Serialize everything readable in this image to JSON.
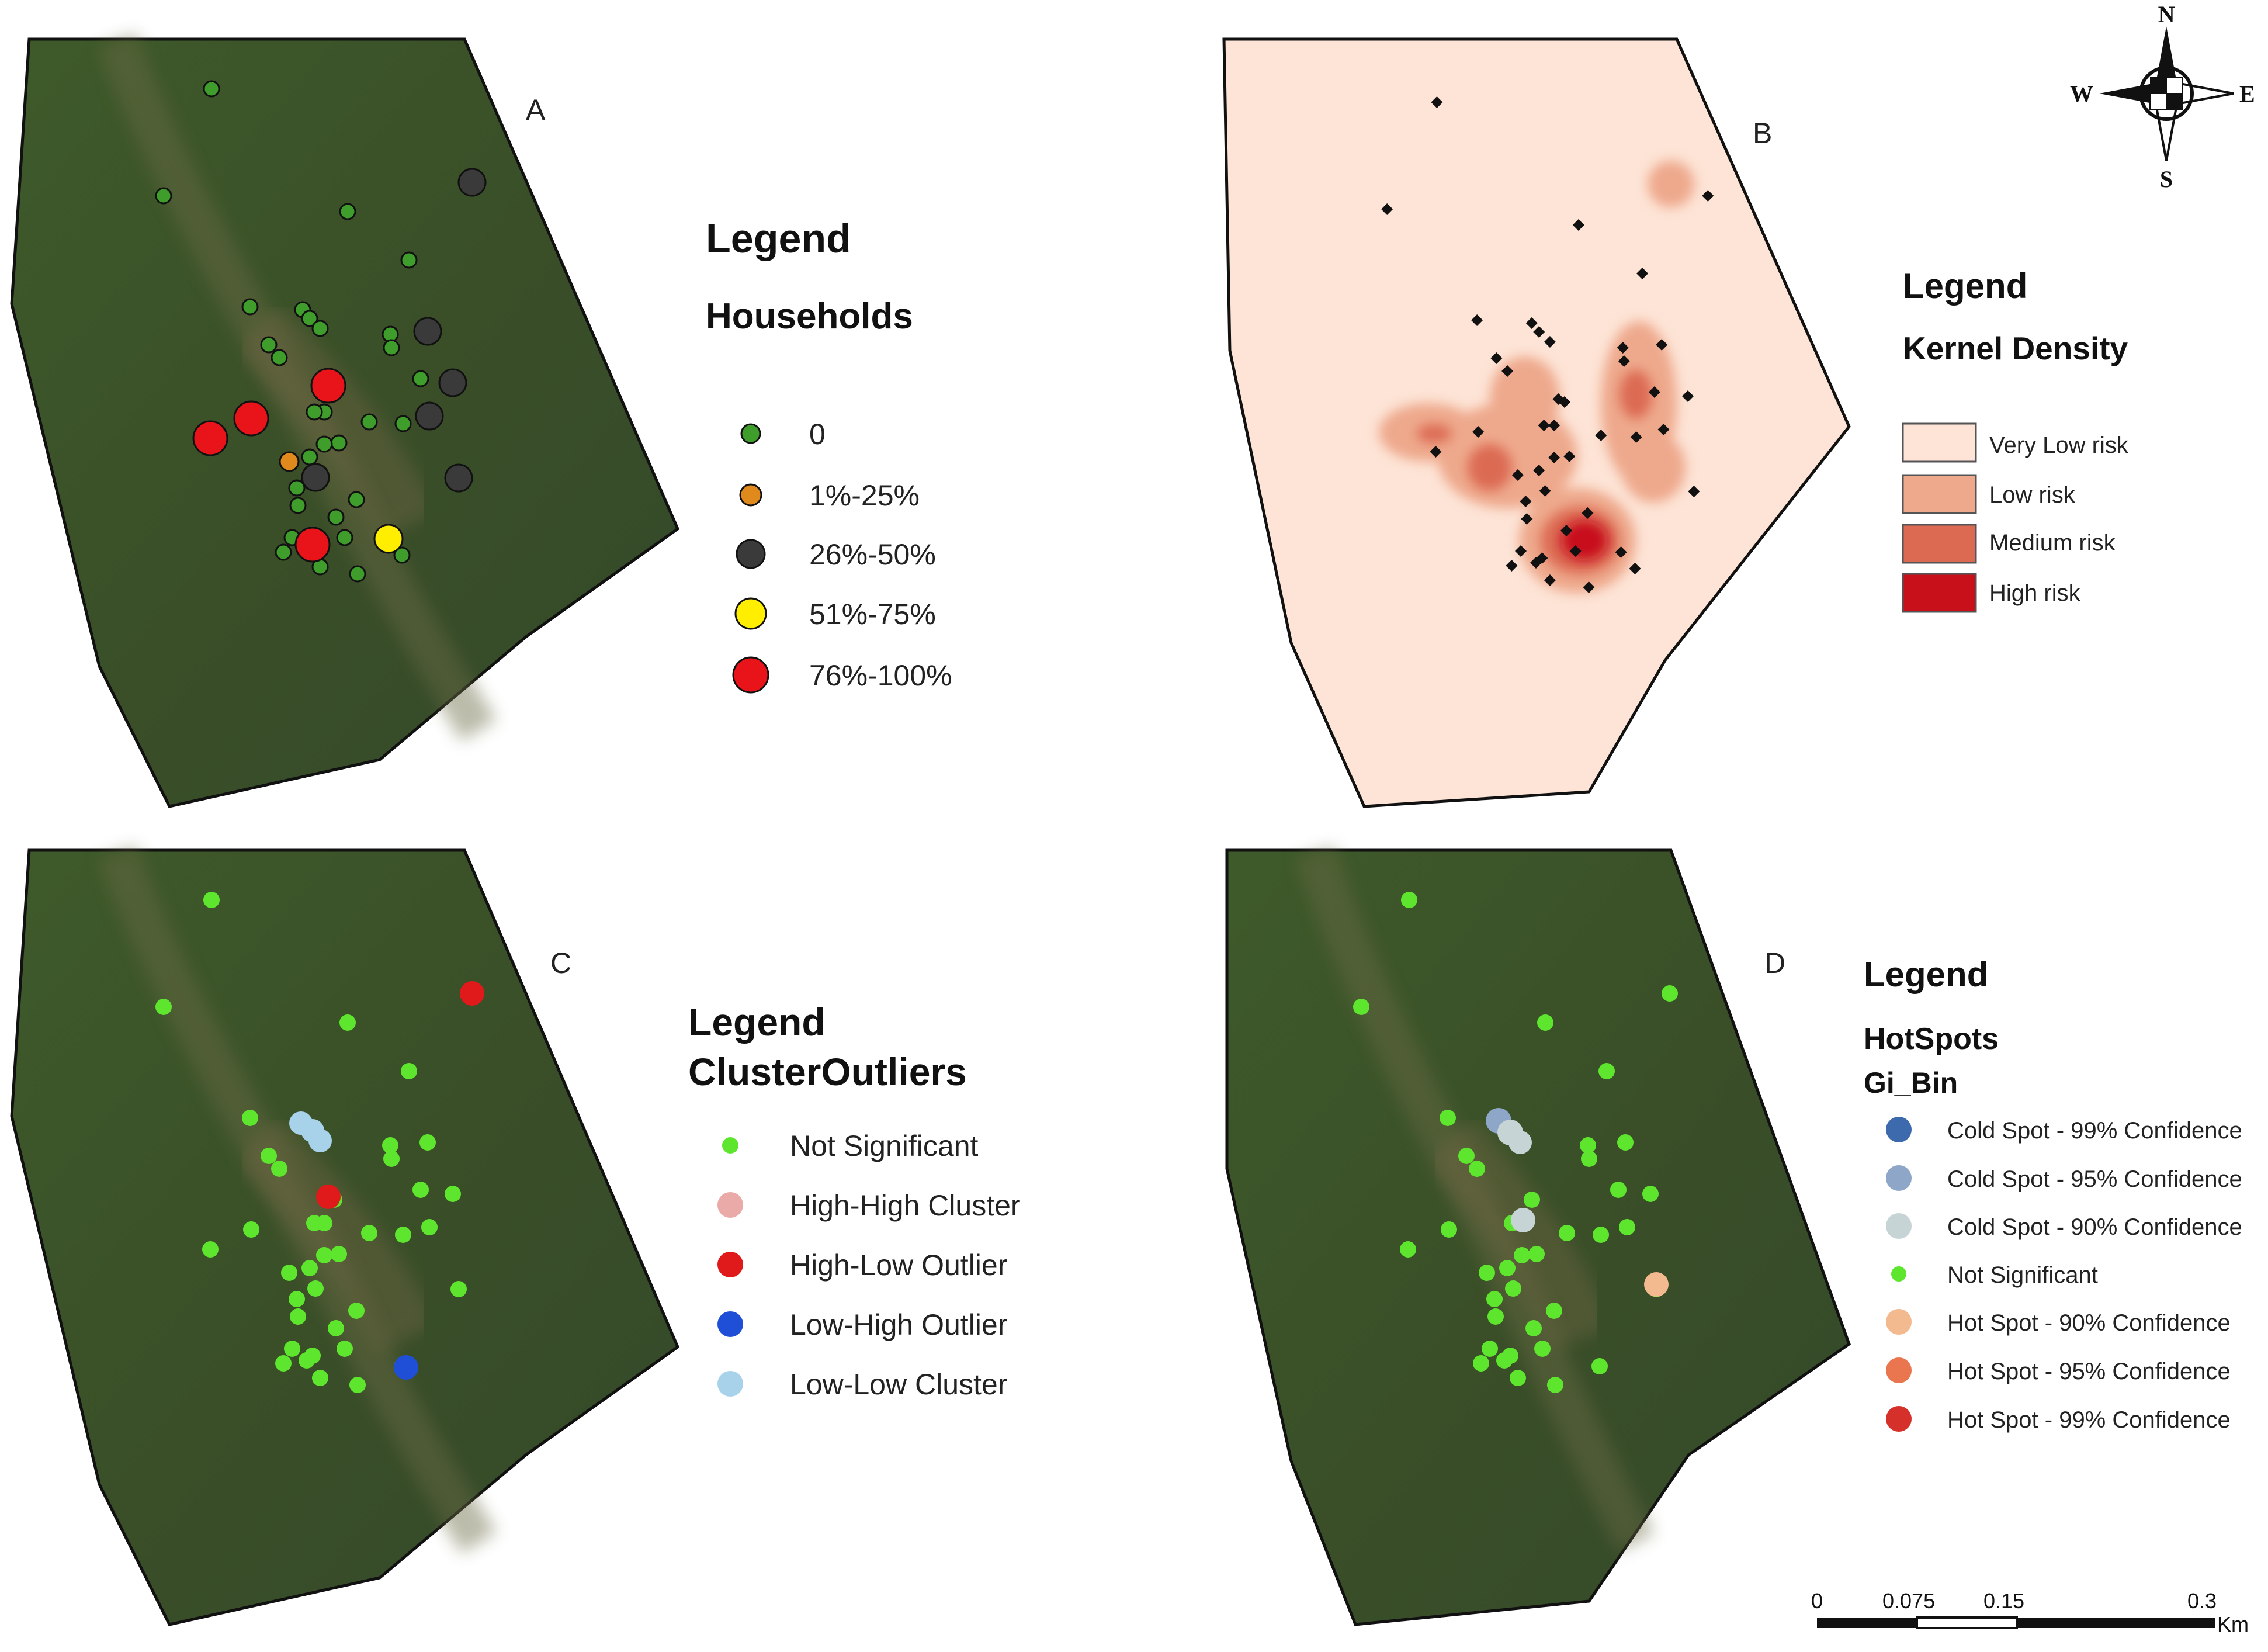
{
  "panels": {
    "A": {
      "letter": "A",
      "legend_title": "Legend",
      "layer_title": "Households",
      "classes": [
        {
          "label": "0",
          "color": "#3f9e2b"
        },
        {
          "label": "1%-25%",
          "color": "#e08a1e"
        },
        {
          "label": "26%-50%",
          "color": "#3a3a3a"
        },
        {
          "label": "51%-75%",
          "color": "#ffee00"
        },
        {
          "label": "76%-100%",
          "color": "#e8141a"
        }
      ]
    },
    "B": {
      "letter": "B",
      "legend_title": "Legend",
      "layer_title": "Kernel Density",
      "classes": [
        {
          "label": "Very Low risk",
          "color": "#fde4d6"
        },
        {
          "label": "Low risk",
          "color": "#eea98c"
        },
        {
          "label": "Medium risk",
          "color": "#dc6a52"
        },
        {
          "label": "High risk",
          "color": "#c8101a"
        }
      ]
    },
    "C": {
      "letter": "C",
      "legend_title": "Legend",
      "layer_title": "ClusterOutliers",
      "classes": [
        {
          "label": "Not Significant",
          "color": "#5ee62e"
        },
        {
          "label": "High-High Cluster",
          "color": "#eaaaa8"
        },
        {
          "label": "High-Low Outlier",
          "color": "#e01a1a"
        },
        {
          "label": "Low-High Outlier",
          "color": "#1f4fd6"
        },
        {
          "label": "Low-Low Cluster",
          "color": "#a8d2ea"
        }
      ]
    },
    "D": {
      "letter": "D",
      "legend_title": "Legend",
      "layer_title": "HotSpots",
      "field": "Gi_Bin",
      "classes": [
        {
          "label": "Cold Spot - 99% Confidence",
          "color": "#3d6aad"
        },
        {
          "label": "Cold Spot - 95% Confidence",
          "color": "#8ea7c8"
        },
        {
          "label": "Cold Spot - 90% Confidence",
          "color": "#c6d4d6"
        },
        {
          "label": "Not Significant",
          "color": "#5ee62e"
        },
        {
          "label": "Hot Spot - 90% Confidence",
          "color": "#f3b98f"
        },
        {
          "label": "Hot Spot - 95% Confidence",
          "color": "#e9764f"
        },
        {
          "label": "Hot Spot - 99% Confidence",
          "color": "#d6302a"
        }
      ]
    }
  },
  "compass": {
    "n": "N",
    "s": "S",
    "e": "E",
    "w": "W"
  },
  "scale_bar": {
    "ticks": [
      "0",
      "0.075",
      "0.15",
      "0.3"
    ],
    "unit": "Km"
  },
  "colors": {
    "satellite": "#3b5228",
    "outline": "#111111",
    "kernel_base": "#fde4d6",
    "household_dot": "#111111"
  }
}
